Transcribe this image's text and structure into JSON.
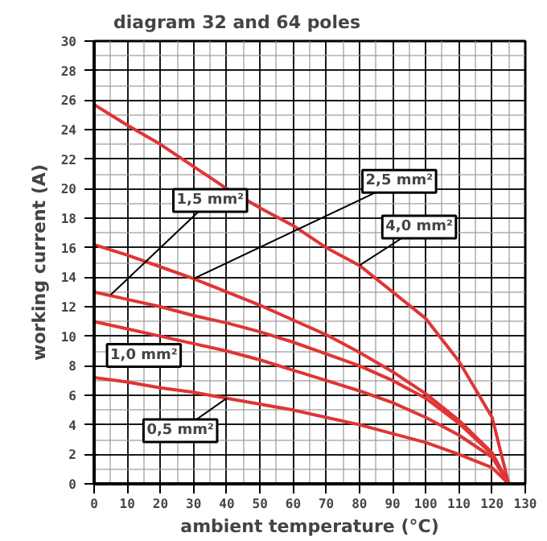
{
  "chart_data": {
    "type": "line",
    "title": "diagram 32 and 64 poles",
    "xlabel": "ambient temperature (°C)",
    "ylabel": "working current (A)",
    "x": [
      0,
      10,
      20,
      30,
      40,
      50,
      60,
      70,
      80,
      90,
      100,
      110,
      120,
      125
    ],
    "series": [
      {
        "name": "4,0 mm²",
        "color": "#e03535",
        "values": [
          25.7,
          24.3,
          23.0,
          21.5,
          20.0,
          18.7,
          17.5,
          16.0,
          14.8,
          13.0,
          11.2,
          8.3,
          4.5,
          0
        ]
      },
      {
        "name": "2,5 mm²",
        "color": "#e03535",
        "values": [
          16.2,
          15.5,
          14.7,
          13.9,
          13.0,
          12.1,
          11.1,
          10.1,
          8.9,
          7.6,
          6.1,
          4.3,
          2.1,
          0
        ]
      },
      {
        "name": "1,5 mm²",
        "color": "#e03535",
        "values": [
          13.0,
          12.5,
          12.0,
          11.4,
          10.9,
          10.3,
          9.6,
          8.8,
          8.0,
          7.0,
          5.8,
          4.1,
          2.0,
          0
        ]
      },
      {
        "name": "1,0 mm²",
        "color": "#e03535",
        "values": [
          11.0,
          10.5,
          10.0,
          9.5,
          9.0,
          8.4,
          7.7,
          7.0,
          6.3,
          5.5,
          4.5,
          3.3,
          1.8,
          0
        ]
      },
      {
        "name": "0,5 mm²",
        "color": "#e03535",
        "values": [
          7.2,
          6.9,
          6.5,
          6.2,
          5.8,
          5.4,
          5.0,
          4.5,
          4.0,
          3.4,
          2.8,
          2.0,
          1.1,
          0
        ]
      }
    ],
    "xlim": [
      0,
      130
    ],
    "ylim": [
      0,
      30
    ],
    "xticks": [
      0,
      10,
      20,
      30,
      40,
      50,
      60,
      70,
      80,
      90,
      100,
      110,
      120,
      130
    ],
    "yticks": [
      0,
      2,
      4,
      6,
      8,
      10,
      12,
      14,
      16,
      18,
      20,
      22,
      24,
      26,
      28,
      30
    ],
    "grid": true,
    "marker": "none",
    "line_style": "solid"
  }
}
